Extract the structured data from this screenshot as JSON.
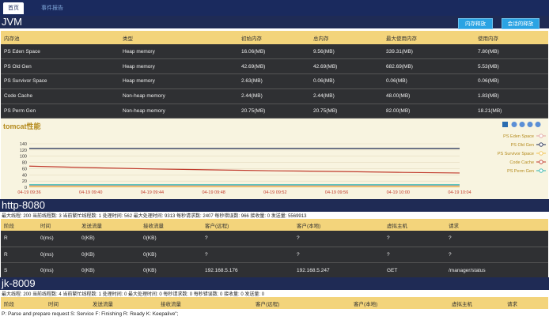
{
  "nav": {
    "tabs": [
      {
        "label": "首页"
      },
      {
        "label": "事件报告"
      }
    ]
  },
  "jvm": {
    "title": "JVM",
    "buttons": {
      "memory": "内存释放",
      "session": "会话的释放"
    },
    "headers": [
      "内存池",
      "类型",
      "初始内存",
      "总内存",
      "最大使用内存",
      "使用内存"
    ],
    "rows": [
      [
        "PS Eden Space",
        "Heap memory",
        "16.06(MB)",
        "9.56(MB)",
        "339.31(MB)",
        "7.80(MB)"
      ],
      [
        "PS Old Gen",
        "Heap memory",
        "42.69(MB)",
        "42.69(MB)",
        "682.69(MB)",
        "5.53(MB)"
      ],
      [
        "PS Survivor Space",
        "Heap memory",
        "2.63(MB)",
        "0.06(MB)",
        "0.06(MB)",
        "0.06(MB)"
      ],
      [
        "Code Cache",
        "Non-heap memory",
        "2.44(MB)",
        "2.44(MB)",
        "48.00(MB)",
        "1.83(MB)"
      ],
      [
        "PS Perm Gen",
        "Non-heap memory",
        "20.75(MB)",
        "20.75(MB)",
        "82.00(MB)",
        "18.21(MB)"
      ]
    ]
  },
  "chart_data": {
    "type": "line",
    "title": "tomcat性能",
    "x": [
      "04-19 09:36",
      "04-19 09:40",
      "04-19 09:44",
      "04-19 09:48",
      "04-19 09:52",
      "04-19 09:56",
      "04-19 10:00",
      "04-19 10:04"
    ],
    "ylim": [
      0,
      140
    ],
    "yticks": [
      0,
      20,
      40,
      60,
      80,
      100,
      120,
      140
    ],
    "legend_position": "right",
    "series": [
      {
        "name": "PS Eden Space",
        "color": "#e2a3a3",
        "values": [
          5,
          5,
          5,
          5,
          5,
          5,
          5,
          5
        ]
      },
      {
        "name": "PS Old Gen",
        "color": "#1f2b55",
        "values": [
          125,
          125,
          125,
          125,
          125,
          125,
          125,
          125
        ]
      },
      {
        "name": "PS Survivor Space",
        "color": "#f2c14e",
        "values": [
          2,
          2,
          2,
          2,
          2,
          2,
          2,
          2
        ]
      },
      {
        "name": "Code Cache",
        "color": "#c0392b",
        "values": [
          68,
          63,
          59,
          56,
          53,
          51,
          48,
          46
        ]
      },
      {
        "name": "PS Perm Gen",
        "color": "#2bb5b0",
        "values": [
          8,
          8,
          8,
          8,
          8,
          8,
          8,
          8
        ]
      }
    ]
  },
  "http": {
    "title": "http-8080",
    "status": "最大线程: 200  当前线程数: 3  当前繁忙线程数: 1  处理时间: 562  最大处理时间: 9313  每秒请求数: 2407  每秒错误数: 966  接收量: 0  发送量: 5569913",
    "headers": [
      "阶段",
      "时间",
      "发送流量",
      "接收流量",
      "客户(远程)",
      "客户(本地)",
      "虚拟主机",
      "请求"
    ],
    "rows": [
      [
        "R",
        "0(ms)",
        "0(KB)",
        "0(KB)",
        "?",
        "?",
        "?",
        "?"
      ],
      [
        "R",
        "0(ms)",
        "0(KB)",
        "0(KB)",
        "?",
        "?",
        "?",
        "?"
      ],
      [
        "S",
        "0(ms)",
        "0(KB)",
        "0(KB)",
        "192.168.5.176",
        "192.168.5.247",
        "GET",
        "/manager/status"
      ]
    ]
  },
  "jk": {
    "title": "jk-8009",
    "status": "最大线程: 200  当前线程数: 4  当前繁忙线程数: 1  处理时间: 0  最大处理时间: 0  每秒请求数: 0  每秒错误数: 0  接收量: 0  发送量: 0",
    "headers": [
      "阶段",
      "时间",
      "发送流量",
      "接收流量",
      "客户(远程)",
      "客户(本地)",
      "虚拟主机",
      "请求"
    ]
  },
  "footer": "P: Parse and prepare request S: Service F: Finishing R: Ready K: Keepalive\";"
}
